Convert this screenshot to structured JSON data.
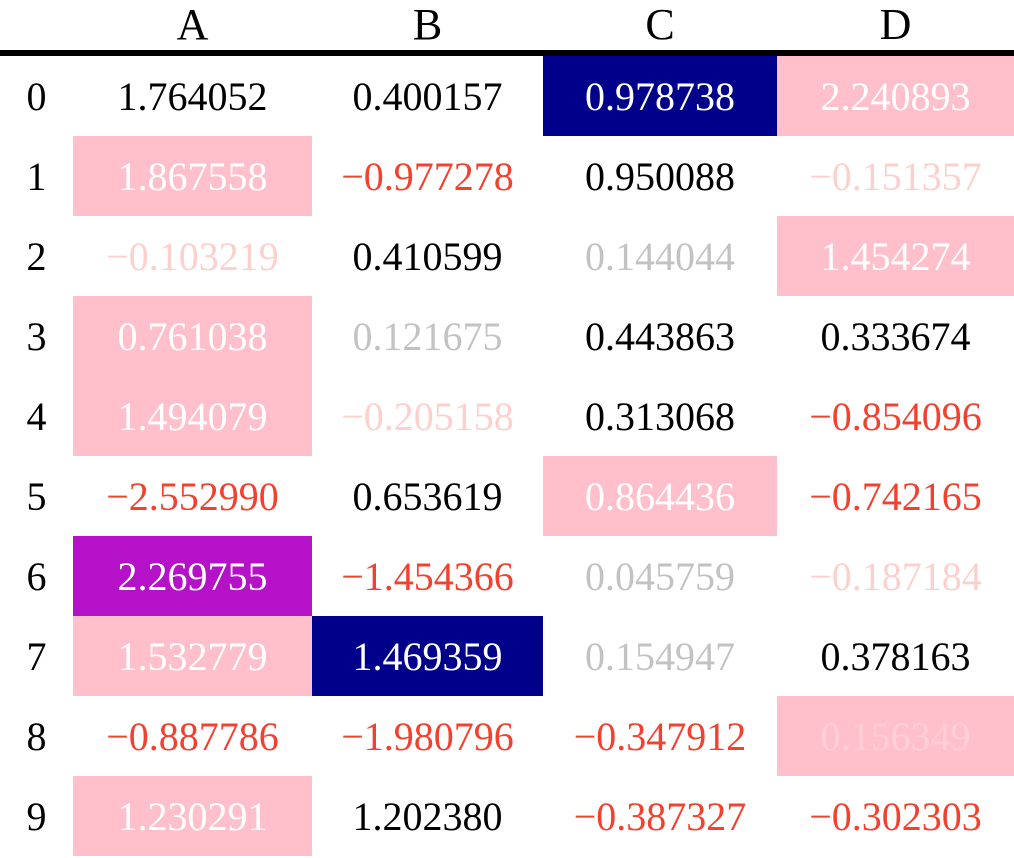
{
  "table": {
    "columns": [
      "A",
      "B",
      "C",
      "D"
    ],
    "rows": [
      {
        "index": "0",
        "cells": [
          {
            "v": "1.764052",
            "fg": "black",
            "bg": null,
            "faded": false
          },
          {
            "v": "0.400157",
            "fg": "black",
            "bg": null,
            "faded": false
          },
          {
            "v": "0.978738",
            "fg": "white",
            "bg": "darkblue",
            "faded": false
          },
          {
            "v": "2.240893",
            "fg": "white",
            "bg": "pink",
            "faded": false
          }
        ]
      },
      {
        "index": "1",
        "cells": [
          {
            "v": "1.867558",
            "fg": "white",
            "bg": "pink",
            "faded": false
          },
          {
            "v": "−0.977278",
            "fg": "red",
            "bg": null,
            "faded": false
          },
          {
            "v": "0.950088",
            "fg": "black",
            "bg": null,
            "faded": false
          },
          {
            "v": "−0.151357",
            "fg": "red",
            "bg": null,
            "faded": true
          }
        ]
      },
      {
        "index": "2",
        "cells": [
          {
            "v": "−0.103219",
            "fg": "red",
            "bg": null,
            "faded": true
          },
          {
            "v": "0.410599",
            "fg": "black",
            "bg": null,
            "faded": false
          },
          {
            "v": "0.144044",
            "fg": "black",
            "bg": null,
            "faded": true
          },
          {
            "v": "1.454274",
            "fg": "white",
            "bg": "pink",
            "faded": false
          }
        ]
      },
      {
        "index": "3",
        "cells": [
          {
            "v": "0.761038",
            "fg": "white",
            "bg": "pink",
            "faded": false
          },
          {
            "v": "0.121675",
            "fg": "black",
            "bg": null,
            "faded": true
          },
          {
            "v": "0.443863",
            "fg": "black",
            "bg": null,
            "faded": false
          },
          {
            "v": "0.333674",
            "fg": "black",
            "bg": null,
            "faded": false
          }
        ]
      },
      {
        "index": "4",
        "cells": [
          {
            "v": "1.494079",
            "fg": "white",
            "bg": "pink",
            "faded": false
          },
          {
            "v": "−0.205158",
            "fg": "red",
            "bg": null,
            "faded": true
          },
          {
            "v": "0.313068",
            "fg": "black",
            "bg": null,
            "faded": false
          },
          {
            "v": "−0.854096",
            "fg": "red",
            "bg": null,
            "faded": false
          }
        ]
      },
      {
        "index": "5",
        "cells": [
          {
            "v": "−2.552990",
            "fg": "red",
            "bg": null,
            "faded": false
          },
          {
            "v": "0.653619",
            "fg": "black",
            "bg": null,
            "faded": false
          },
          {
            "v": "0.864436",
            "fg": "white",
            "bg": "pink",
            "faded": false
          },
          {
            "v": "−0.742165",
            "fg": "red",
            "bg": null,
            "faded": false
          }
        ]
      },
      {
        "index": "6",
        "cells": [
          {
            "v": "2.269755",
            "fg": "white",
            "bg": "purple",
            "faded": false
          },
          {
            "v": "−1.454366",
            "fg": "red",
            "bg": null,
            "faded": false
          },
          {
            "v": "0.045759",
            "fg": "black",
            "bg": null,
            "faded": true
          },
          {
            "v": "−0.187184",
            "fg": "red",
            "bg": null,
            "faded": true
          }
        ]
      },
      {
        "index": "7",
        "cells": [
          {
            "v": "1.532779",
            "fg": "white",
            "bg": "pink",
            "faded": false
          },
          {
            "v": "1.469359",
            "fg": "white",
            "bg": "darkblue",
            "faded": false
          },
          {
            "v": "0.154947",
            "fg": "black",
            "bg": null,
            "faded": true
          },
          {
            "v": "0.378163",
            "fg": "black",
            "bg": null,
            "faded": false
          }
        ]
      },
      {
        "index": "8",
        "cells": [
          {
            "v": "−0.887786",
            "fg": "red",
            "bg": null,
            "faded": false
          },
          {
            "v": "−1.980796",
            "fg": "red",
            "bg": null,
            "faded": false
          },
          {
            "v": "−0.347912",
            "fg": "red",
            "bg": null,
            "faded": false
          },
          {
            "v": "0.156349",
            "fg": "white",
            "bg": "pink",
            "faded": true
          }
        ]
      },
      {
        "index": "9",
        "cells": [
          {
            "v": "1.230291",
            "fg": "white",
            "bg": "pink",
            "faded": false
          },
          {
            "v": "1.202380",
            "fg": "black",
            "bg": null,
            "faded": false
          },
          {
            "v": "−0.387327",
            "fg": "red",
            "bg": null,
            "faded": false
          },
          {
            "v": "−0.302303",
            "fg": "red",
            "bg": null,
            "faded": false
          }
        ]
      }
    ]
  },
  "colors": {
    "black": "#000000",
    "red": "#F4402E",
    "white": "#FFFFFF",
    "pink": "#FFC0CB",
    "darkblue": "#00008B",
    "purple": "#B511C8",
    "rule": "#000000",
    "background": "#FFFFFF",
    "faded_alpha": 0.24
  },
  "chart_data": {
    "type": "table",
    "title": "",
    "columns": [
      "A",
      "B",
      "C",
      "D"
    ],
    "index": [
      0,
      1,
      2,
      3,
      4,
      5,
      6,
      7,
      8,
      9
    ],
    "values": [
      [
        1.764052,
        0.400157,
        0.978738,
        2.240893
      ],
      [
        1.867558,
        -0.977278,
        0.950088,
        -0.151357
      ],
      [
        -0.103219,
        0.410599,
        0.144044,
        1.454274
      ],
      [
        0.761038,
        0.121675,
        0.443863,
        0.333674
      ],
      [
        1.494079,
        -0.205158,
        0.313068,
        -0.854096
      ],
      [
        -2.55299,
        0.653619,
        0.864436,
        -0.742165
      ],
      [
        2.269755,
        -1.454366,
        0.045759,
        -0.187184
      ],
      [
        1.532779,
        1.469359,
        0.154947,
        0.378163
      ],
      [
        -0.887786,
        -1.980796,
        -0.347912,
        0.156349
      ],
      [
        1.230291,
        1.20238,
        -0.387327,
        -0.302303
      ]
    ]
  }
}
